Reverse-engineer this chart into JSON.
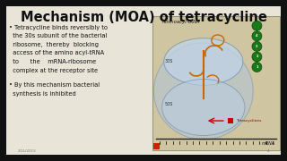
{
  "background_color": "#111111",
  "slide_bg": "#e8e4d8",
  "title": "Mechanism (MOA) of tetracycline",
  "title_fontsize": 10.5,
  "title_color": "#111111",
  "bullet1_line1": "• Tetracycline binds reversibly to",
  "bullet1_line2": "  the 30s subunit of the bacterial",
  "bullet1_line3": "  ribosome,  thereby  blocking",
  "bullet1_line4": "  access of the amino acyl-tRNA",
  "bullet1_line5": "  to      the    mRNA-ribosome",
  "bullet1_line6": "  complex at the receptor site",
  "bullet2_line1": "• By this mechanism bacterial",
  "bullet2_line2": "  synthesis is inhibited",
  "bullet_fontsize": 4.8,
  "bullet_color": "#111111",
  "diagram_bg": "#cfc5a0",
  "date_text": "2/11/2013",
  "page_num": "4",
  "green_color": "#1a7a1a",
  "orange_color": "#cc6600",
  "blue_ellipse": "#a0b8d0",
  "arrow_color": "#cc0000",
  "tetracyclines_label": "Tetracyclines",
  "mrna_label": "mRNA",
  "aminoacyl_label": "Aminoacyl-tRNA"
}
